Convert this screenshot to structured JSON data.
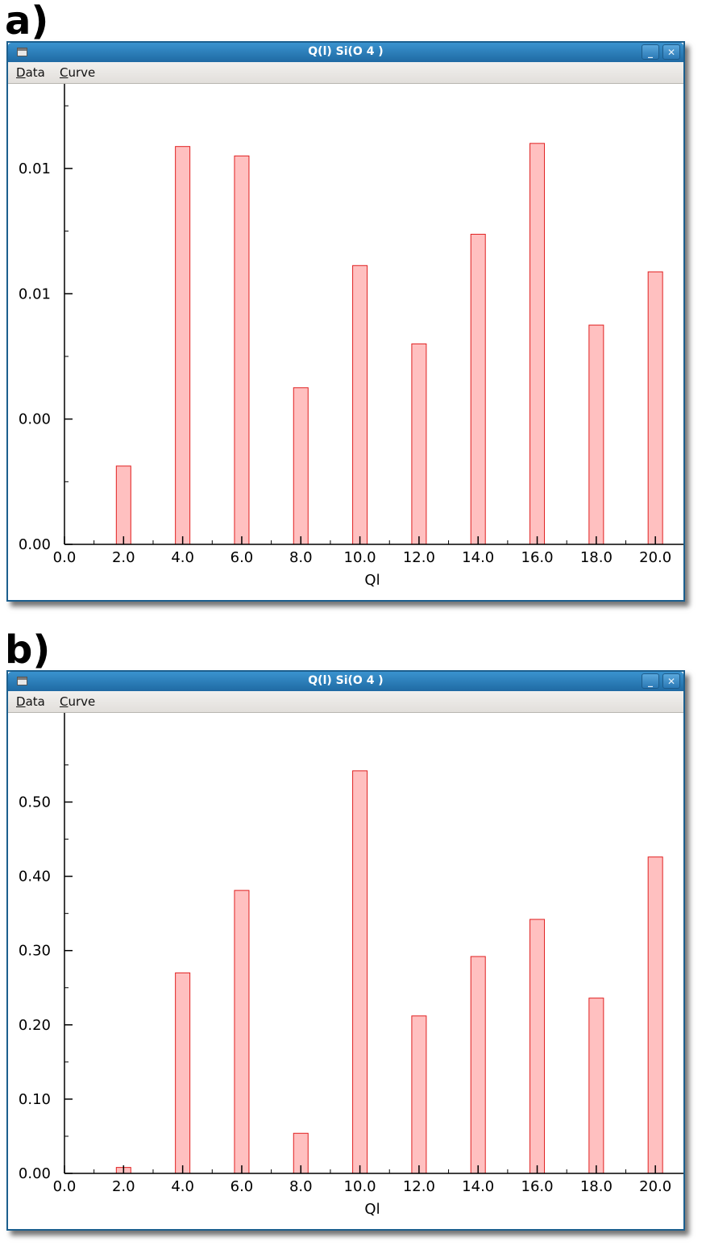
{
  "panels": [
    {
      "label": "a)",
      "window": {
        "title": "Q(l) Si(O  4 )",
        "menu": [
          {
            "mnemonic": "D",
            "rest": "ata"
          },
          {
            "mnemonic": "C",
            "rest": "urve"
          }
        ],
        "min_glyph": "_",
        "close_glyph": "✕"
      }
    },
    {
      "label": "b)",
      "window": {
        "title": "Q(l) Si(O  4 )",
        "menu": [
          {
            "mnemonic": "D",
            "rest": "ata"
          },
          {
            "mnemonic": "C",
            "rest": "urve"
          }
        ],
        "min_glyph": "_",
        "close_glyph": "✕"
      }
    }
  ],
  "chart_data": [
    {
      "type": "bar",
      "xlabel": "Ql",
      "x": [
        2,
        4,
        6,
        8,
        10,
        12,
        14,
        16,
        18,
        20
      ],
      "values": [
        0.0025,
        0.0127,
        0.0124,
        0.005,
        0.0089,
        0.0064,
        0.0099,
        0.0128,
        0.007,
        0.0087
      ],
      "xticks": [
        "0.0",
        "2.0",
        "4.0",
        "6.0",
        "8.0",
        "10.0",
        "12.0",
        "14.0",
        "16.0",
        "18.0",
        "20.0"
      ],
      "yticks": [
        "0.00",
        "0.00",
        "0.01",
        "0.01"
      ],
      "ytick_values": [
        0,
        0.004,
        0.008,
        0.012
      ],
      "ylim": [
        0,
        0.0147
      ],
      "xlim": [
        0,
        20.95
      ],
      "bar_color": "#ffc0c0",
      "edge_color": "#e02020",
      "grid": false
    },
    {
      "type": "bar",
      "xlabel": "Ql",
      "x": [
        2,
        4,
        6,
        8,
        10,
        12,
        14,
        16,
        18,
        20
      ],
      "values": [
        0.008,
        0.27,
        0.381,
        0.054,
        0.542,
        0.212,
        0.292,
        0.342,
        0.236,
        0.426
      ],
      "xticks": [
        "0.0",
        "2.0",
        "4.0",
        "6.0",
        "8.0",
        "10.0",
        "12.0",
        "14.0",
        "16.0",
        "18.0",
        "20.0"
      ],
      "yticks": [
        "0.00",
        "0.10",
        "0.20",
        "0.30",
        "0.40",
        "0.50"
      ],
      "ytick_values": [
        0,
        0.1,
        0.2,
        0.3,
        0.4,
        0.5
      ],
      "ylim": [
        0,
        0.62
      ],
      "xlim": [
        0,
        20.95
      ],
      "bar_color": "#ffc0c0",
      "edge_color": "#e02020",
      "grid": false
    }
  ]
}
